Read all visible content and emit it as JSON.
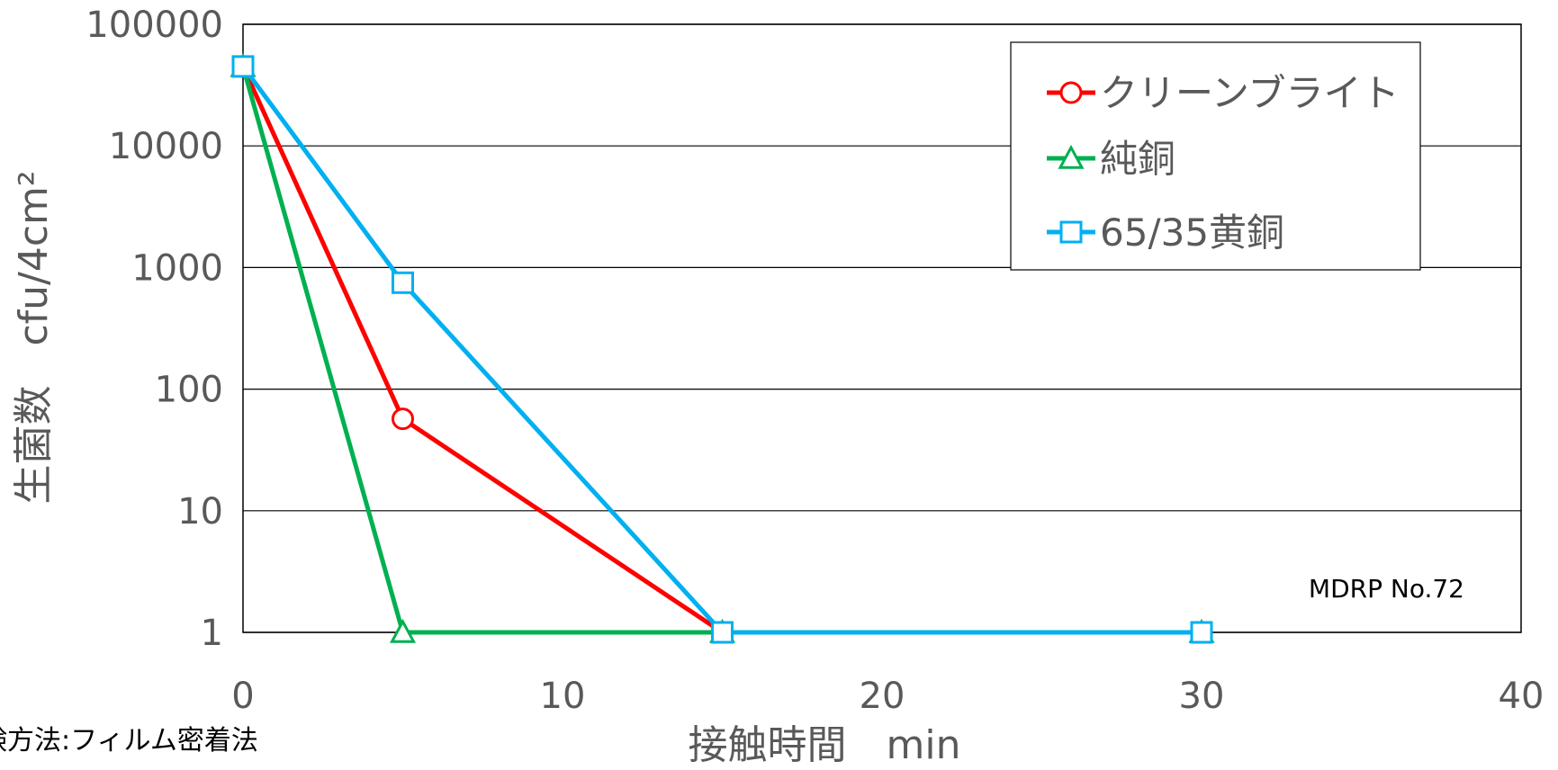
{
  "chart_data": {
    "type": "line",
    "xlabel": "接触時間　min",
    "ylabel": "生菌数　cfu/4cm²",
    "xlim": [
      0,
      40
    ],
    "x_ticks": [
      "0",
      "10",
      "20",
      "30",
      "40"
    ],
    "ylim": [
      1,
      100000
    ],
    "yscale": "log",
    "y_ticks": [
      "1",
      "10",
      "100",
      "1000",
      "10000",
      "100000"
    ],
    "grid": "horizontal",
    "legend_position": "top-right",
    "annotation": "MDRP No.72",
    "series": [
      {
        "name": "クリーンブライト",
        "color": "#ff0000",
        "marker": "circle",
        "x": [
          0,
          5,
          15,
          30
        ],
        "y": [
          45000,
          57,
          1,
          1
        ]
      },
      {
        "name": "純銅",
        "color": "#00b050",
        "marker": "triangle",
        "x": [
          0,
          5,
          15,
          30
        ],
        "y": [
          45000,
          1,
          1,
          1
        ]
      },
      {
        "name": "65/35黄銅",
        "color": "#00b0f0",
        "marker": "square",
        "x": [
          0,
          5,
          15,
          30
        ],
        "y": [
          45000,
          750,
          1,
          1
        ]
      }
    ]
  },
  "footnote": "験方法:フィルム密着法"
}
